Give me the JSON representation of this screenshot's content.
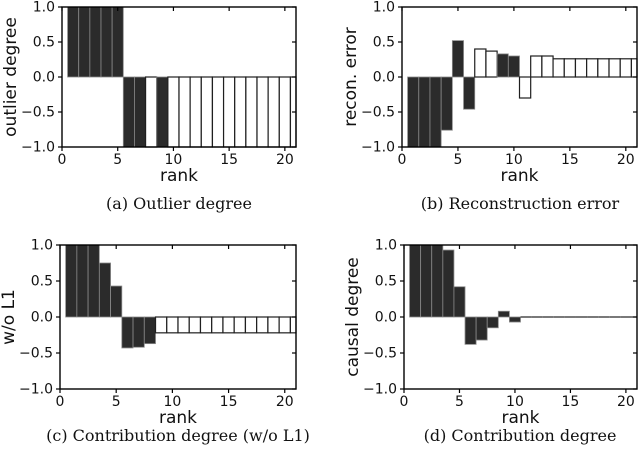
{
  "figure": {
    "background": "#ffffff",
    "axis_color": "#000000",
    "text_color": "#111111",
    "bar_dark_fill": "#2b2b2b",
    "bar_dark_edge": "#8a8a8a",
    "bar_white_fill": "#ffffff",
    "bar_white_edge": "#1f1f1f"
  },
  "chart_data": [
    {
      "id": "outlier-degree",
      "type": "bar",
      "caption": "(a) Outlier degree",
      "xlabel": "rank",
      "ylabel": "outlier degree",
      "xlim": [
        0,
        21
      ],
      "ylim": [
        -1.0,
        1.0
      ],
      "x_ticks": [
        0,
        5,
        10,
        15,
        20
      ],
      "y_ticks": [
        1.0,
        0.5,
        0.0,
        -0.5,
        -1.0
      ],
      "y_tick_labels": [
        "1.0",
        "0.5",
        "0.0",
        "−0.5",
        "−1.0"
      ],
      "x": [
        1,
        2,
        3,
        4,
        5,
        6,
        7,
        8,
        9,
        10,
        11,
        12,
        13,
        14,
        15,
        16,
        17,
        18,
        19,
        20,
        21
      ],
      "values": [
        1,
        1,
        1,
        1,
        1,
        -1,
        -1,
        -1,
        -1,
        -1,
        -1,
        -1,
        -1,
        -1,
        -1,
        -1,
        -1,
        -1,
        -1,
        -1,
        -1
      ],
      "filled": [
        true,
        true,
        true,
        true,
        true,
        true,
        true,
        false,
        true,
        false,
        false,
        false,
        false,
        false,
        false,
        false,
        false,
        false,
        false,
        false,
        false
      ]
    },
    {
      "id": "reconstruction-error",
      "type": "bar",
      "caption": "(b) Reconstruction error",
      "xlabel": "rank",
      "ylabel": "recon. error",
      "xlim": [
        0,
        21
      ],
      "ylim": [
        -1.0,
        1.0
      ],
      "x_ticks": [
        0,
        5,
        10,
        15,
        20
      ],
      "y_ticks": [
        1.0,
        0.5,
        0.0,
        -0.5,
        -1.0
      ],
      "y_tick_labels": [
        "1.0",
        "0.5",
        "0.0",
        "−0.5",
        "−1.0"
      ],
      "x": [
        1,
        2,
        3,
        4,
        5,
        6,
        7,
        8,
        9,
        10,
        11,
        12,
        13,
        14,
        15,
        16,
        17,
        18,
        19,
        20,
        21
      ],
      "values": [
        -1,
        -1,
        -1,
        -0.76,
        0.52,
        -0.46,
        0.4,
        0.37,
        0.33,
        0.3,
        -0.3,
        0.3,
        0.3,
        0.26,
        0.26,
        0.26,
        0.26,
        0.26,
        0.26,
        0.26,
        0.26
      ],
      "filled": [
        true,
        true,
        true,
        true,
        true,
        true,
        false,
        false,
        true,
        true,
        false,
        false,
        false,
        false,
        false,
        false,
        false,
        false,
        false,
        false,
        false
      ]
    },
    {
      "id": "contribution-degree-wo-l1",
      "type": "bar",
      "caption": "(c) Contribution degree (w/o L1)",
      "xlabel": "rank",
      "ylabel": "w/o L1",
      "xlim": [
        0,
        21
      ],
      "ylim": [
        -1.0,
        1.0
      ],
      "x_ticks": [
        0,
        5,
        10,
        15,
        20
      ],
      "y_ticks": [
        1.0,
        0.5,
        0.0,
        -0.5,
        -1.0
      ],
      "y_tick_labels": [
        "1.0",
        "0.5",
        "0.0",
        "−0.5",
        "−1.0"
      ],
      "x": [
        1,
        2,
        3,
        4,
        5,
        6,
        7,
        8,
        9,
        10,
        11,
        12,
        13,
        14,
        15,
        16,
        17,
        18,
        19,
        20,
        21
      ],
      "values": [
        1,
        1,
        1,
        0.75,
        0.43,
        -0.43,
        -0.42,
        -0.37,
        -0.22,
        -0.22,
        -0.22,
        -0.22,
        -0.22,
        -0.22,
        -0.22,
        -0.22,
        -0.22,
        -0.22,
        -0.22,
        -0.22,
        -0.22
      ],
      "filled": [
        true,
        true,
        true,
        true,
        true,
        true,
        true,
        true,
        false,
        false,
        false,
        false,
        false,
        false,
        false,
        false,
        false,
        false,
        false,
        false,
        false
      ]
    },
    {
      "id": "contribution-degree",
      "type": "bar",
      "caption": "(d) Contribution degree",
      "xlabel": "rank",
      "ylabel": "causal degree",
      "xlim": [
        0,
        21
      ],
      "ylim": [
        -1.0,
        1.0
      ],
      "x_ticks": [
        0,
        5,
        10,
        15,
        20
      ],
      "y_ticks": [
        1.0,
        0.5,
        0.0,
        -0.5,
        -1.0
      ],
      "y_tick_labels": [
        "1.0",
        "0.5",
        "0.0",
        "−0.5",
        "−1.0"
      ],
      "x": [
        1,
        2,
        3,
        4,
        5,
        6,
        7,
        8,
        9,
        10,
        11,
        12,
        13,
        14,
        15,
        16,
        17,
        18,
        19,
        20,
        21
      ],
      "values": [
        1,
        1,
        1,
        0.93,
        0.42,
        -0.38,
        -0.32,
        -0.15,
        0.08,
        -0.07,
        0,
        0,
        0,
        0,
        0,
        0,
        0,
        0,
        0,
        0,
        0
      ],
      "filled": [
        true,
        true,
        true,
        true,
        true,
        true,
        true,
        true,
        true,
        true,
        false,
        false,
        false,
        false,
        false,
        false,
        false,
        false,
        false,
        false,
        false
      ]
    }
  ]
}
